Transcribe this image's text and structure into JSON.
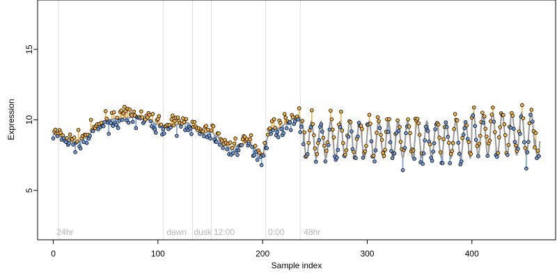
{
  "chart_data": {
    "type": "scatter",
    "title": "",
    "xlabel": "Sample index",
    "ylabel": "Expression",
    "xlim": [
      -15,
      480
    ],
    "ylim": [
      1.5,
      18.5
    ],
    "xticks": [
      0,
      100,
      200,
      300,
      400
    ],
    "yticks": [
      5,
      10,
      15
    ],
    "grid": false,
    "legend": "none",
    "colors": {
      "frame": "#000000",
      "vline": "#dddddd",
      "annotation": "#b5b5b5",
      "smooth": "#999999",
      "above": "#f5b342",
      "below": "#6f9bdc",
      "point_stroke": "#000000"
    },
    "vlines": [
      5,
      105,
      133,
      151,
      203,
      236
    ],
    "annotations": [
      {
        "x": 2,
        "label": "24hr"
      },
      {
        "x": 107,
        "label": "dawn"
      },
      {
        "x": 133,
        "label": "dusk"
      },
      {
        "x": 152,
        "label": "12:00"
      },
      {
        "x": 204,
        "label": "0:00"
      },
      {
        "x": 238,
        "label": "48hr"
      }
    ],
    "segments": [
      {
        "kind": "smooth",
        "x0": 0,
        "x1": 236,
        "anchors": [
          [
            0,
            9.0
          ],
          [
            8,
            8.8
          ],
          [
            15,
            8.5
          ],
          [
            22,
            8.4
          ],
          [
            30,
            8.7
          ],
          [
            40,
            9.3
          ],
          [
            50,
            9.9
          ],
          [
            60,
            10.1
          ],
          [
            70,
            10.15
          ],
          [
            80,
            10.2
          ],
          [
            90,
            10.0
          ],
          [
            100,
            9.7
          ],
          [
            110,
            9.5
          ],
          [
            120,
            9.7
          ],
          [
            128,
            9.8
          ],
          [
            135,
            9.4
          ],
          [
            142,
            9.0
          ],
          [
            150,
            9.2
          ],
          [
            157,
            8.8
          ],
          [
            163,
            8.2
          ],
          [
            170,
            8.0
          ],
          [
            178,
            8.2
          ],
          [
            186,
            8.4
          ],
          [
            194,
            7.9
          ],
          [
            200,
            7.4
          ],
          [
            203,
            8.5
          ],
          [
            208,
            9.4
          ],
          [
            215,
            9.4
          ],
          [
            222,
            9.7
          ],
          [
            230,
            10.1
          ],
          [
            236,
            10.2
          ]
        ]
      },
      {
        "kind": "oscillation",
        "x0": 236,
        "x1": 465,
        "mean": 8.6,
        "amplitude": 1.3,
        "period": 9.2,
        "phase": 0.6
      },
      {
        "kind": "oscillation",
        "x0": 400,
        "x1": 460,
        "mean": 9.0,
        "amplitude": 1.5,
        "period": 9.2,
        "phase": 0.6
      }
    ],
    "n_points": 465,
    "points_note_seed": 7
  }
}
